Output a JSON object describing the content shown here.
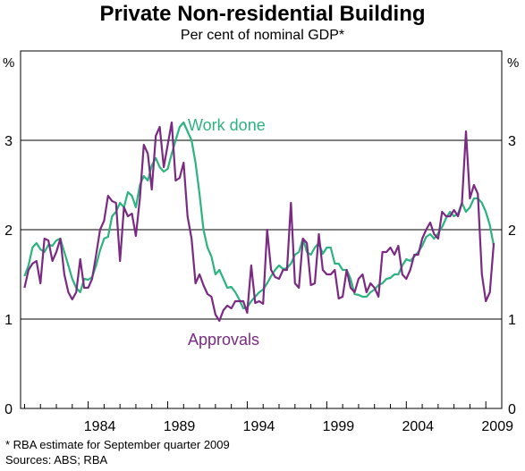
{
  "title": "Private Non-residential Building",
  "subtitle": "Per cent of nominal GDP*",
  "footnotes": {
    "estimate": "*    RBA estimate for September quarter 2009",
    "sources": "Sources: ABS; RBA"
  },
  "chart_data": {
    "type": "line",
    "title": "Private Non-residential Building",
    "subtitle": "Per cent of nominal GDP*",
    "yunit_left": "%",
    "yunit_right": "%",
    "ylim": [
      0,
      4
    ],
    "yticks": [
      0,
      1,
      2,
      3
    ],
    "xlim": [
      1979.75,
      2010.0
    ],
    "xticks": [
      1984,
      1989,
      1994,
      1999,
      2004,
      2009
    ],
    "grid": true,
    "colors": {
      "work_done": "#2db37f",
      "approvals": "#7b2a83"
    },
    "series": [
      {
        "name": "Work done",
        "key": "work_done",
        "x_start": 1980.0,
        "x_step": 0.25,
        "values": [
          1.48,
          1.6,
          1.8,
          1.85,
          1.78,
          1.75,
          1.83,
          1.82,
          1.88,
          1.9,
          1.75,
          1.6,
          1.45,
          1.35,
          1.3,
          1.45,
          1.44,
          1.47,
          1.6,
          1.77,
          1.9,
          1.92,
          2.15,
          2.2,
          2.3,
          2.25,
          2.42,
          2.38,
          2.25,
          2.5,
          2.6,
          2.55,
          2.72,
          2.8,
          2.7,
          2.65,
          2.68,
          2.85,
          3.0,
          3.15,
          3.2,
          3.1,
          3.0,
          2.75,
          2.4,
          2.0,
          1.8,
          1.7,
          1.5,
          1.55,
          1.45,
          1.35,
          1.36,
          1.3,
          1.22,
          1.12,
          1.13,
          1.2,
          1.25,
          1.3,
          1.33,
          1.4,
          1.48,
          1.55,
          1.6,
          1.56,
          1.57,
          1.62,
          1.72,
          1.75,
          1.9,
          1.75,
          1.72,
          1.8,
          1.85,
          1.73,
          1.8,
          1.8,
          1.62,
          1.62,
          1.55,
          1.55,
          1.45,
          1.28,
          1.27,
          1.25,
          1.25,
          1.3,
          1.33,
          1.38,
          1.4,
          1.45,
          1.46,
          1.5,
          1.5,
          1.6,
          1.67,
          1.65,
          1.7,
          1.75,
          1.82,
          1.92,
          1.95,
          1.9,
          1.96,
          2.03,
          2.13,
          2.2,
          2.15,
          2.18,
          2.3,
          2.2,
          2.25,
          2.35,
          2.35,
          2.3,
          2.2,
          2.05,
          1.82
        ]
      },
      {
        "name": "Approvals",
        "key": "approvals",
        "x_start": 1980.0,
        "x_step": 0.25,
        "values": [
          1.35,
          1.55,
          1.62,
          1.65,
          1.4,
          1.9,
          1.88,
          1.65,
          1.75,
          1.9,
          1.5,
          1.3,
          1.22,
          1.3,
          1.67,
          1.35,
          1.35,
          1.45,
          1.72,
          2.0,
          2.1,
          2.38,
          2.32,
          2.3,
          1.65,
          2.25,
          2.15,
          2.18,
          1.93,
          2.35,
          2.95,
          2.85,
          2.45,
          3.05,
          3.15,
          2.7,
          2.95,
          3.2,
          2.55,
          2.58,
          2.75,
          2.15,
          1.9,
          1.4,
          1.5,
          1.38,
          1.28,
          1.25,
          1.05,
          0.98,
          1.1,
          1.15,
          1.12,
          1.2,
          1.2,
          1.2,
          1.07,
          1.6,
          1.18,
          1.2,
          1.17,
          2.0,
          1.55,
          1.47,
          1.45,
          1.55,
          1.55,
          2.3,
          1.4,
          1.35,
          1.9,
          1.85,
          1.38,
          1.4,
          1.95,
          1.55,
          1.5,
          1.5,
          1.55,
          1.23,
          1.25,
          1.55,
          1.35,
          1.3,
          1.45,
          1.5,
          1.3,
          1.4,
          1.35,
          1.25,
          1.75,
          1.75,
          1.8,
          1.72,
          1.82,
          1.5,
          1.45,
          1.55,
          1.72,
          1.72,
          1.9,
          2.0,
          2.08,
          1.95,
          1.9,
          2.2,
          2.15,
          2.15,
          2.22,
          2.15,
          2.3,
          3.1,
          2.35,
          2.5,
          2.4,
          1.5,
          1.2,
          1.3,
          1.85
        ]
      }
    ],
    "annotations": [
      {
        "text": "Work done",
        "series": "work_done"
      },
      {
        "text": "Approvals",
        "series": "approvals"
      }
    ]
  }
}
